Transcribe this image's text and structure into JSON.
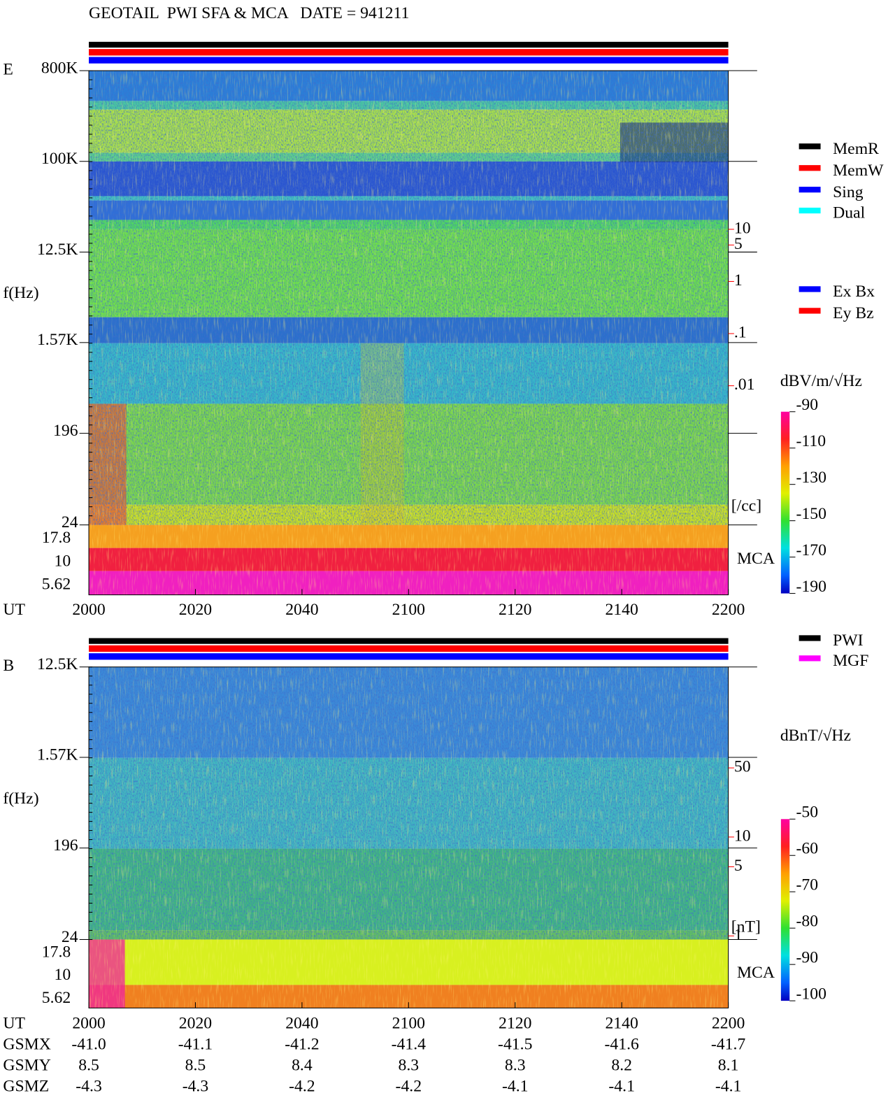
{
  "chart_data": [
    {
      "type": "spectrogram",
      "title": "GEOTAIL  PWI SFA & MCA   DATE = 941211",
      "panel_label": "E",
      "ylabel": "f(Hz)",
      "xlabel": "UT",
      "log_y": true,
      "ylim": [
        24,
        800000
      ],
      "yticks": [
        {
          "value": 800000,
          "label": "800K"
        },
        {
          "value": 100000,
          "label": "100K"
        },
        {
          "value": 12500,
          "label": "12.5K"
        },
        {
          "value": 1570,
          "label": "1.57K"
        },
        196,
        24
      ],
      "mca_label": "MCA",
      "mca_channels": [
        "17.8",
        "10",
        "5.62"
      ],
      "x_categories": [
        "2000",
        "2020",
        "2040",
        "2100",
        "2120",
        "2140",
        "2200"
      ],
      "y2label": "[/cc]",
      "y2lim": [
        0.01,
        10
      ],
      "y2ticks": [
        10,
        5,
        1,
        {
          "value": 0.1,
          "label": ".1"
        },
        {
          "value": 0.01,
          "label": ".01"
        }
      ],
      "y2color": "#ff0000",
      "zlabel": "dBV/m/√Hz",
      "zlim": [
        -190,
        -90
      ],
      "zticks": [
        -90,
        -110,
        -130,
        -150,
        -170,
        -190
      ],
      "legend_groups": [
        [
          {
            "name": "MemR",
            "color": "#000000"
          },
          {
            "name": "MemW",
            "color": "#ff0000"
          },
          {
            "name": "Sing",
            "color": "#0000ff"
          },
          {
            "name": "Dual",
            "color": "#00ffff"
          }
        ],
        [
          {
            "name": "Ex Bx",
            "color": "#0000ff"
          },
          {
            "name": "Ey Bz",
            "color": "#ff0000"
          }
        ]
      ]
    },
    {
      "type": "spectrogram",
      "panel_label": "B",
      "ylabel": "f(Hz)",
      "xlabel": "UT",
      "log_y": true,
      "ylim": [
        24,
        12500
      ],
      "yticks": [
        {
          "value": 12500,
          "label": "12.5K"
        },
        {
          "value": 1570,
          "label": "1.57K"
        },
        196,
        24
      ],
      "mca_label": "MCA",
      "mca_channels": [
        "17.8",
        "10",
        "5.62"
      ],
      "x_categories": [
        "2000",
        "2020",
        "2040",
        "2100",
        "2120",
        "2140",
        "2200"
      ],
      "y2label": "[nT]",
      "y2lim": [
        1,
        50
      ],
      "y2ticks": [
        50,
        10,
        5,
        1
      ],
      "y2color": "#ff0000",
      "zlabel": "dBnT/√Hz",
      "zlim": [
        -100,
        -50
      ],
      "zticks": [
        -50,
        -60,
        -70,
        -80,
        -90,
        -100
      ],
      "legend_groups": [
        [
          {
            "name": "PWI",
            "color": "#000000"
          },
          {
            "name": "MGF",
            "color": "#ff00ff"
          }
        ]
      ]
    }
  ],
  "orbit": {
    "labels": [
      "GSMX",
      "GSMY",
      "GSMZ"
    ],
    "rows": [
      [
        "-41.0",
        "-41.1",
        "-41.2",
        "-41.4",
        "-41.5",
        "-41.6",
        "-41.7"
      ],
      [
        "8.5",
        "8.5",
        "8.4",
        "8.3",
        "8.3",
        "8.2",
        "8.1"
      ],
      [
        "-4.3",
        "-4.3",
        "-4.2",
        "-4.2",
        "-4.1",
        "-4.1",
        "-4.1"
      ]
    ]
  }
}
